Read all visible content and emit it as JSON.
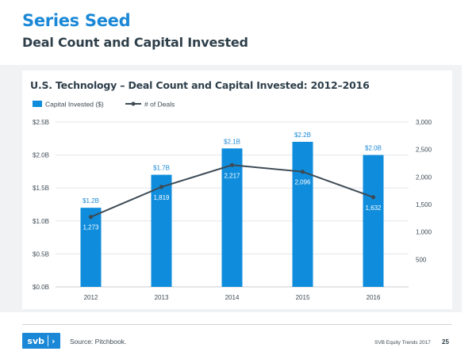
{
  "slide": {
    "title": "Series Seed",
    "subtitle": "Deal Count and Capital Invested"
  },
  "footer": {
    "logo_text": "svb",
    "logo_arrow": "›",
    "source": "Source: Pitchbook.",
    "report": "SVB Equity Trends 2017",
    "page": "25"
  },
  "colors": {
    "accent": "#1a88d6",
    "bar": "#0f8ddc",
    "line": "#3c4a55",
    "panel": "#f1f2f4"
  },
  "chart_data": {
    "type": "bar",
    "title": "U.S. Technology – Deal Count and Capital Invested: 2012–2016",
    "categories": [
      "2012",
      "2013",
      "2014",
      "2015",
      "2016"
    ],
    "legend_position": "top-left",
    "grid": true,
    "series": [
      {
        "name": "Capital Invested ($)",
        "kind": "bar",
        "axis": "left",
        "values": [
          1.2,
          1.7,
          2.1,
          2.2,
          2.0
        ],
        "labels": [
          "$1.2B",
          "$1.7B",
          "$2.1B",
          "$2.2B",
          "$2.0B"
        ]
      },
      {
        "name": "# of Deals",
        "kind": "line",
        "axis": "right",
        "values": [
          1273,
          1819,
          2217,
          2096,
          1632
        ],
        "labels": [
          "1,273",
          "1,819",
          "2,217",
          "2,096",
          "1,632"
        ]
      }
    ],
    "left_axis": {
      "ylim": [
        0,
        2.5
      ],
      "ticks": [
        0,
        0.5,
        1.0,
        1.5,
        2.0,
        2.5
      ],
      "tick_labels": [
        "$0.0B",
        "$0.5B",
        "$1.0B",
        "$1.5B",
        "$2.0B",
        "$2.5B"
      ]
    },
    "right_axis": {
      "ylim": [
        0,
        3000
      ],
      "ticks": [
        500,
        1000,
        1500,
        2000,
        2500,
        3000
      ],
      "tick_labels": [
        "500",
        "1,000",
        "1,500",
        "2,000",
        "2,500",
        "3,000"
      ]
    }
  }
}
